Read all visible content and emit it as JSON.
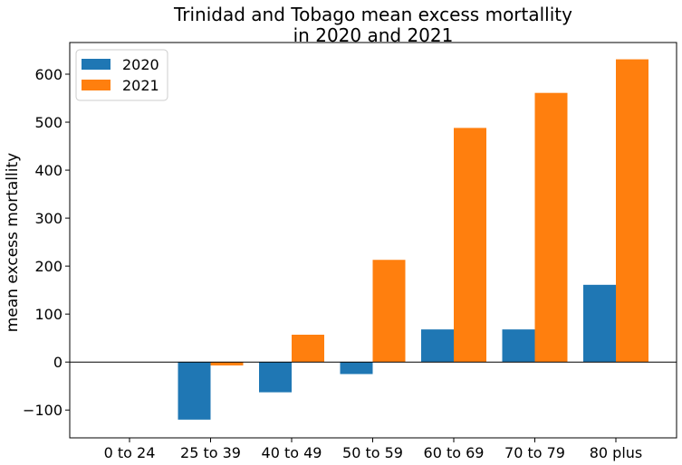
{
  "chart_data": {
    "type": "bar",
    "title_line1": "Trinidad and Tobago mean excess mortallity",
    "title_line2": "in 2020 and 2021",
    "xlabel": "",
    "ylabel": "mean excess mortallity",
    "categories": [
      "0 to 24",
      "25 to 39",
      "40 to 49",
      "50 to 59",
      "60 to 69",
      "70 to 79",
      "80 plus"
    ],
    "series": [
      {
        "name": "2020",
        "color": "#1f77b4",
        "values": [
          0,
          -120,
          -63,
          -25,
          68,
          68,
          161
        ]
      },
      {
        "name": "2021",
        "color": "#ff7f0e",
        "values": [
          0,
          -7,
          57,
          213,
          488,
          561,
          631
        ]
      }
    ],
    "ylim": [
      -158,
      666
    ],
    "yticks": [
      -100,
      0,
      100,
      200,
      300,
      400,
      500,
      600
    ],
    "legend": "top-left",
    "grid": false,
    "zero_line": true
  }
}
